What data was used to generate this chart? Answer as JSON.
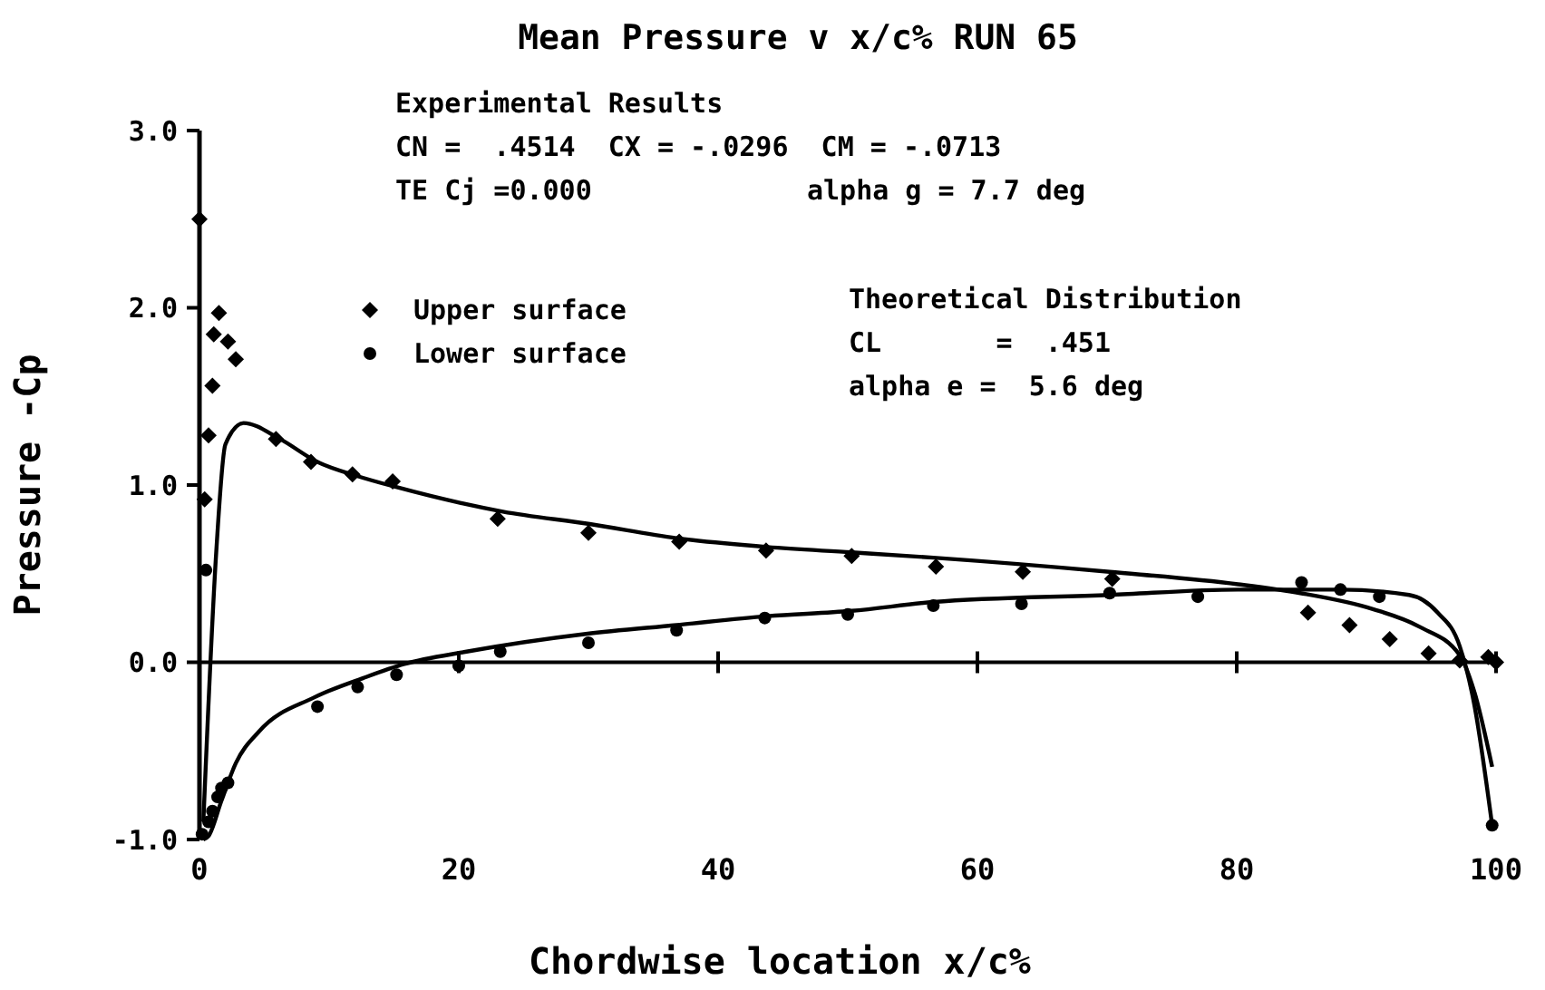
{
  "chart_data": {
    "type": "scatter",
    "title": "Mean Pressure v x/c% RUN 65",
    "xlabel": "Chordwise location x/c%",
    "ylabel": "Pressure -Cp",
    "xlim": [
      0,
      100
    ],
    "ylim": [
      -1,
      3
    ],
    "xticks": [
      0,
      20,
      40,
      60,
      80,
      100
    ],
    "yticks": [
      {
        "value": -1,
        "label": "-1.0"
      },
      {
        "value": 0,
        "label": "0.0"
      },
      {
        "value": 1,
        "label": "1.0"
      },
      {
        "value": 2,
        "label": "2.0"
      },
      {
        "value": 3,
        "label": "3.0"
      }
    ],
    "grid": false,
    "legend": "top left",
    "ref_lines": [
      {
        "axis": "y",
        "value": 0,
        "color": "#000000"
      }
    ],
    "annotations": [
      "Experimental Results",
      "CN =  .4514  CX = -.0296  CM = -.0713",
      "TE Cj =0.000",
      "alpha g = 7.7 deg",
      "Theoretical Distribution",
      "CL       =  .451",
      "alpha e =  5.6 deg"
    ],
    "series": [
      {
        "name": "Upper surface",
        "marker": "diamond",
        "color": "#000000",
        "x": [
          0,
          0.4,
          0.7,
          1.0,
          1.1,
          1.5,
          2.2,
          2.8,
          5.9,
          8.6,
          11.8,
          14.9,
          23,
          30,
          37,
          43.7,
          50.3,
          56.8,
          63.5,
          70.4,
          85.5,
          88.7,
          91.8,
          94.8,
          97.2,
          99.4,
          100
        ],
        "values": [
          2.5,
          0.92,
          1.28,
          1.56,
          1.85,
          1.97,
          1.81,
          1.71,
          1.26,
          1.13,
          1.06,
          1.02,
          0.81,
          0.73,
          0.68,
          0.63,
          0.6,
          0.54,
          0.51,
          0.47,
          0.28,
          0.21,
          0.13,
          0.05,
          0.01,
          0.03,
          0.0
        ]
      },
      {
        "name": "Lower surface",
        "marker": "circle",
        "color": "#000000",
        "x": [
          0.2,
          0.5,
          0.7,
          1.0,
          1.4,
          1.7,
          2.2,
          9.1,
          12.2,
          15.2,
          20,
          23.2,
          30,
          36.8,
          43.6,
          50,
          56.6,
          63.4,
          70.2,
          77,
          85,
          88,
          91,
          99.7
        ],
        "values": [
          -0.97,
          0.52,
          -0.9,
          -0.84,
          -0.76,
          -0.71,
          -0.68,
          -0.25,
          -0.14,
          -0.07,
          -0.02,
          0.06,
          0.11,
          0.18,
          0.25,
          0.27,
          0.32,
          0.33,
          0.39,
          0.37,
          0.45,
          0.41,
          0.37,
          -0.92
        ]
      },
      {
        "type": "line",
        "color": "#000000",
        "x": [
          0.3,
          1.3,
          2.0,
          3.4,
          6.2,
          9.1,
          12.2,
          15.1,
          23.4,
          30.1,
          36.8,
          43.8,
          50.3,
          56.6,
          70.2,
          80.1,
          84.9,
          90.5,
          94.1,
          97.2,
          98.3,
          99.7
        ],
        "values": [
          -0.9,
          0.63,
          1.23,
          1.35,
          1.26,
          1.13,
          1.05,
          0.99,
          0.85,
          0.78,
          0.7,
          0.65,
          0.62,
          0.59,
          0.51,
          0.44,
          0.39,
          0.3,
          0.2,
          0.04,
          -0.16,
          -0.59
        ]
      },
      {
        "type": "line",
        "color": "#000000",
        "x": [
          0.3,
          0.7,
          1.7,
          2.8,
          4.6,
          8.8,
          12.6,
          15.8,
          20.6,
          29.8,
          36.8,
          43.8,
          50.3,
          56.6,
          70.2,
          80.1,
          88,
          93.3,
          95.5,
          97.2,
          98.3,
          99.7
        ],
        "values": [
          -1.0,
          -0.98,
          -0.78,
          -0.57,
          -0.39,
          -0.2,
          -0.09,
          -0.01,
          0.06,
          0.16,
          0.21,
          0.26,
          0.29,
          0.34,
          0.38,
          0.41,
          0.41,
          0.38,
          0.28,
          0.09,
          -0.23,
          -0.92
        ]
      }
    ]
  }
}
